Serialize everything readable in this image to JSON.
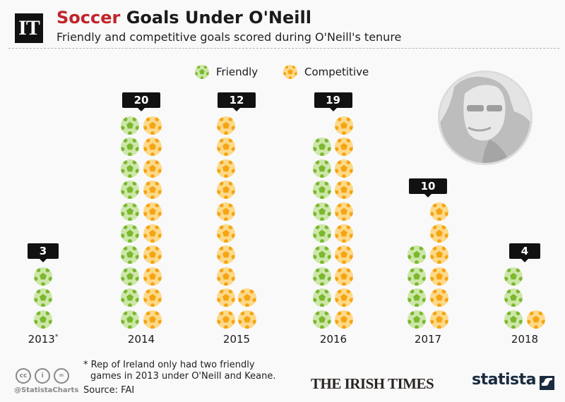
{
  "header": {
    "logo": "IT",
    "title_accent": "Soccer",
    "title_rest": " Goals Under O'Neill",
    "subtitle": "Friendly and competitive goals scored during O'Neill's tenure"
  },
  "legend": [
    {
      "label": "Friendly",
      "icon": "green-football-icon",
      "color": "#8cc63e"
    },
    {
      "label": "Competitive",
      "icon": "orange-football-icon",
      "color": "#fbb040"
    }
  ],
  "colors": {
    "friendly_fill": "#cde7a8",
    "friendly_spot": "#7cb82f",
    "competitive_fill": "#fdd98a",
    "competitive_spot": "#f5a512",
    "accent": "#c0242a",
    "badge": "#111111"
  },
  "chart_data": {
    "type": "bar",
    "title": "Soccer Goals Under O'Neill",
    "subtitle": "Friendly and competitive goals scored during O'Neill's tenure",
    "representation": "pictogram (one ball = one goal, stacked columns of 10)",
    "categories": [
      "2013*",
      "2014",
      "2015",
      "2016",
      "2017",
      "2018"
    ],
    "series": [
      {
        "name": "Friendly",
        "values": [
          3,
          10,
          0,
          9,
          4,
          3
        ]
      },
      {
        "name": "Competitive",
        "values": [
          0,
          10,
          12,
          10,
          6,
          1
        ]
      }
    ],
    "totals": [
      3,
      20,
      12,
      19,
      10,
      4
    ],
    "legend_position": "top",
    "grid": false,
    "xlabel": "",
    "ylabel": "",
    "annotations": [
      "* Rep of Ireland only had two friendly games in 2013 under O'Neill and Keane."
    ]
  },
  "columns": [
    {
      "year": "2013",
      "asterisk": "*",
      "total": "3"
    },
    {
      "year": "2014",
      "asterisk": "",
      "total": "20"
    },
    {
      "year": "2015",
      "asterisk": "",
      "total": "12"
    },
    {
      "year": "2016",
      "asterisk": "",
      "total": "19"
    },
    {
      "year": "2017",
      "asterisk": "",
      "total": "10"
    },
    {
      "year": "2018",
      "asterisk": "",
      "total": "4"
    }
  ],
  "footer": {
    "footnote_line1": "* Rep of Ireland only had two friendly",
    "footnote_line2": "games in 2013 under O'Neill and Keane.",
    "source": "Source: FAI",
    "handle": "@StatistaCharts",
    "cc_icons": [
      "cc",
      "by",
      "nd"
    ],
    "cc_labels": [
      "cc",
      "i",
      "="
    ],
    "brand_irish_times": "THE IRISH TIMES",
    "brand_statista": "statista"
  }
}
